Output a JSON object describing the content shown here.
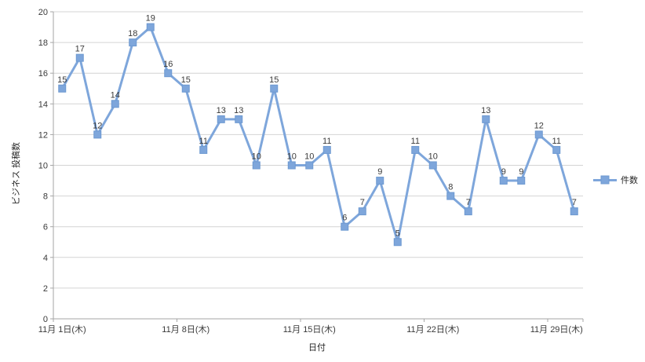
{
  "chart_data": {
    "type": "line",
    "title": "",
    "xlabel": "日付",
    "ylabel": "ビジネス 投稿数",
    "ylim": [
      0,
      20
    ],
    "ytick_step": 2,
    "grid": "horizontal",
    "data_labels": true,
    "legend_position": "right",
    "x_tick_labels": [
      "11月 1日(木)",
      "11月 8日(木)",
      "11月 15日(木)",
      "11月 22日(木)",
      "11月 29日(木)"
    ],
    "x_tick_indices": [
      0,
      7,
      14,
      21,
      28
    ],
    "x_label_interval": 7,
    "n_points": 30,
    "series": [
      {
        "name": "件数",
        "values": [
          15,
          17,
          12,
          14,
          18,
          19,
          16,
          15,
          11,
          13,
          13,
          10,
          15,
          10,
          10,
          11,
          6,
          7,
          9,
          5,
          11,
          10,
          8,
          7,
          13,
          9,
          9,
          12,
          11,
          7
        ]
      }
    ],
    "colors": {
      "series_line": "#7ea6db",
      "marker_fill": "#7ea6db",
      "marker_border": "#6d99d1",
      "gridline": "#d4d4d4",
      "axis": "#a6a6a6",
      "tick_text": "#3a3a3a",
      "data_label_text": "#222222",
      "background": "#ffffff"
    }
  }
}
